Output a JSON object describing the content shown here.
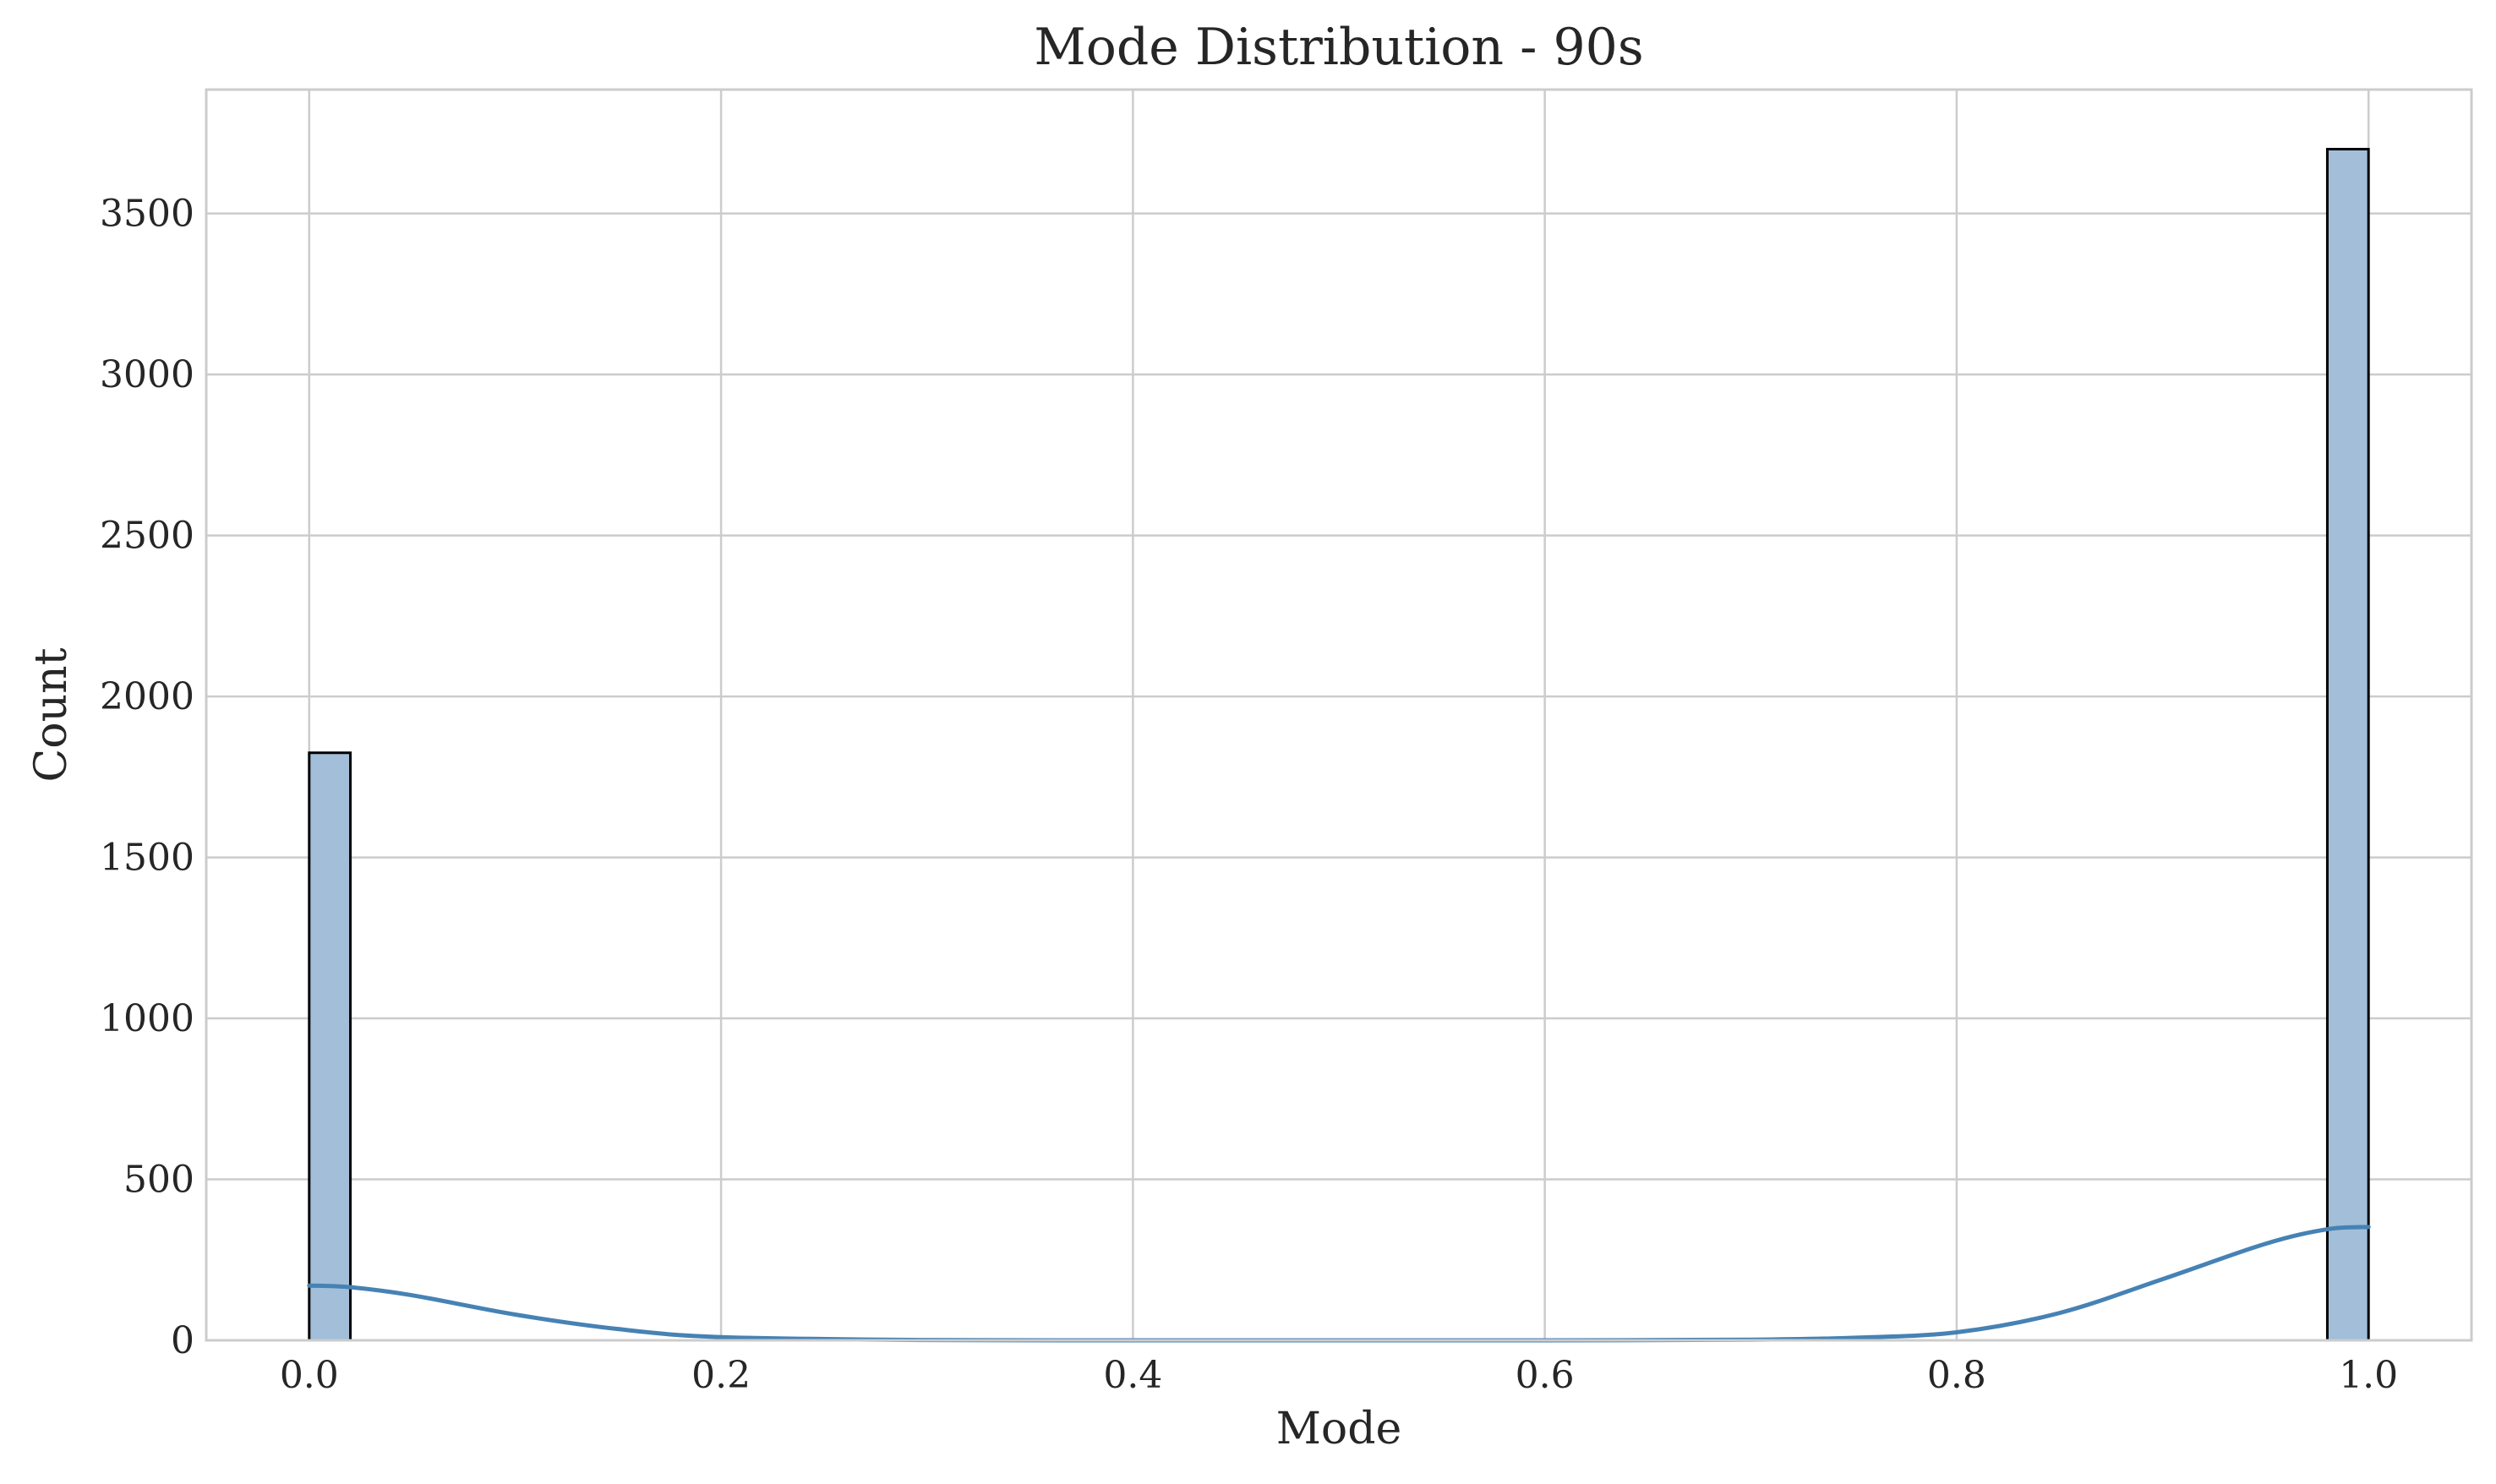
{
  "chart_data": {
    "type": "bar",
    "title": "Mode Distribution - 90s",
    "xlabel": "Mode",
    "ylabel": "Count",
    "xlim": [
      -0.05,
      1.05
    ],
    "ylim": [
      0,
      3885
    ],
    "x_ticks": [
      0.0,
      0.2,
      0.4,
      0.6,
      0.8,
      1.0
    ],
    "x_tick_labels": [
      "0.0",
      "0.2",
      "0.4",
      "0.6",
      "0.8",
      "1.0"
    ],
    "y_ticks": [
      0,
      500,
      1000,
      1500,
      2000,
      2500,
      3000,
      3500
    ],
    "y_tick_labels": [
      "0",
      "500",
      "1000",
      "1500",
      "2000",
      "2500",
      "3000",
      "3500"
    ],
    "grid": true,
    "bins": [
      {
        "x_start": 0.0,
        "x_end": 0.02,
        "count": 1825
      },
      {
        "x_start": 0.98,
        "x_end": 1.0,
        "count": 3700
      }
    ],
    "kde": {
      "x": [
        0.0,
        0.02,
        0.05,
        0.1,
        0.15,
        0.2,
        0.3,
        0.4,
        0.5,
        0.6,
        0.7,
        0.75,
        0.8,
        0.85,
        0.9,
        0.95,
        0.98,
        1.0
      ],
      "y": [
        170,
        165,
        140,
        80,
        35,
        10,
        1,
        0,
        0,
        0,
        2,
        8,
        25,
        85,
        190,
        300,
        345,
        352
      ]
    },
    "colors": {
      "bar_fill": "#a2bed9",
      "bar_edge": "#000000",
      "kde_line": "#4682b4",
      "grid": "#cccccc",
      "frame": "#cccccc",
      "text": "#262626"
    }
  }
}
